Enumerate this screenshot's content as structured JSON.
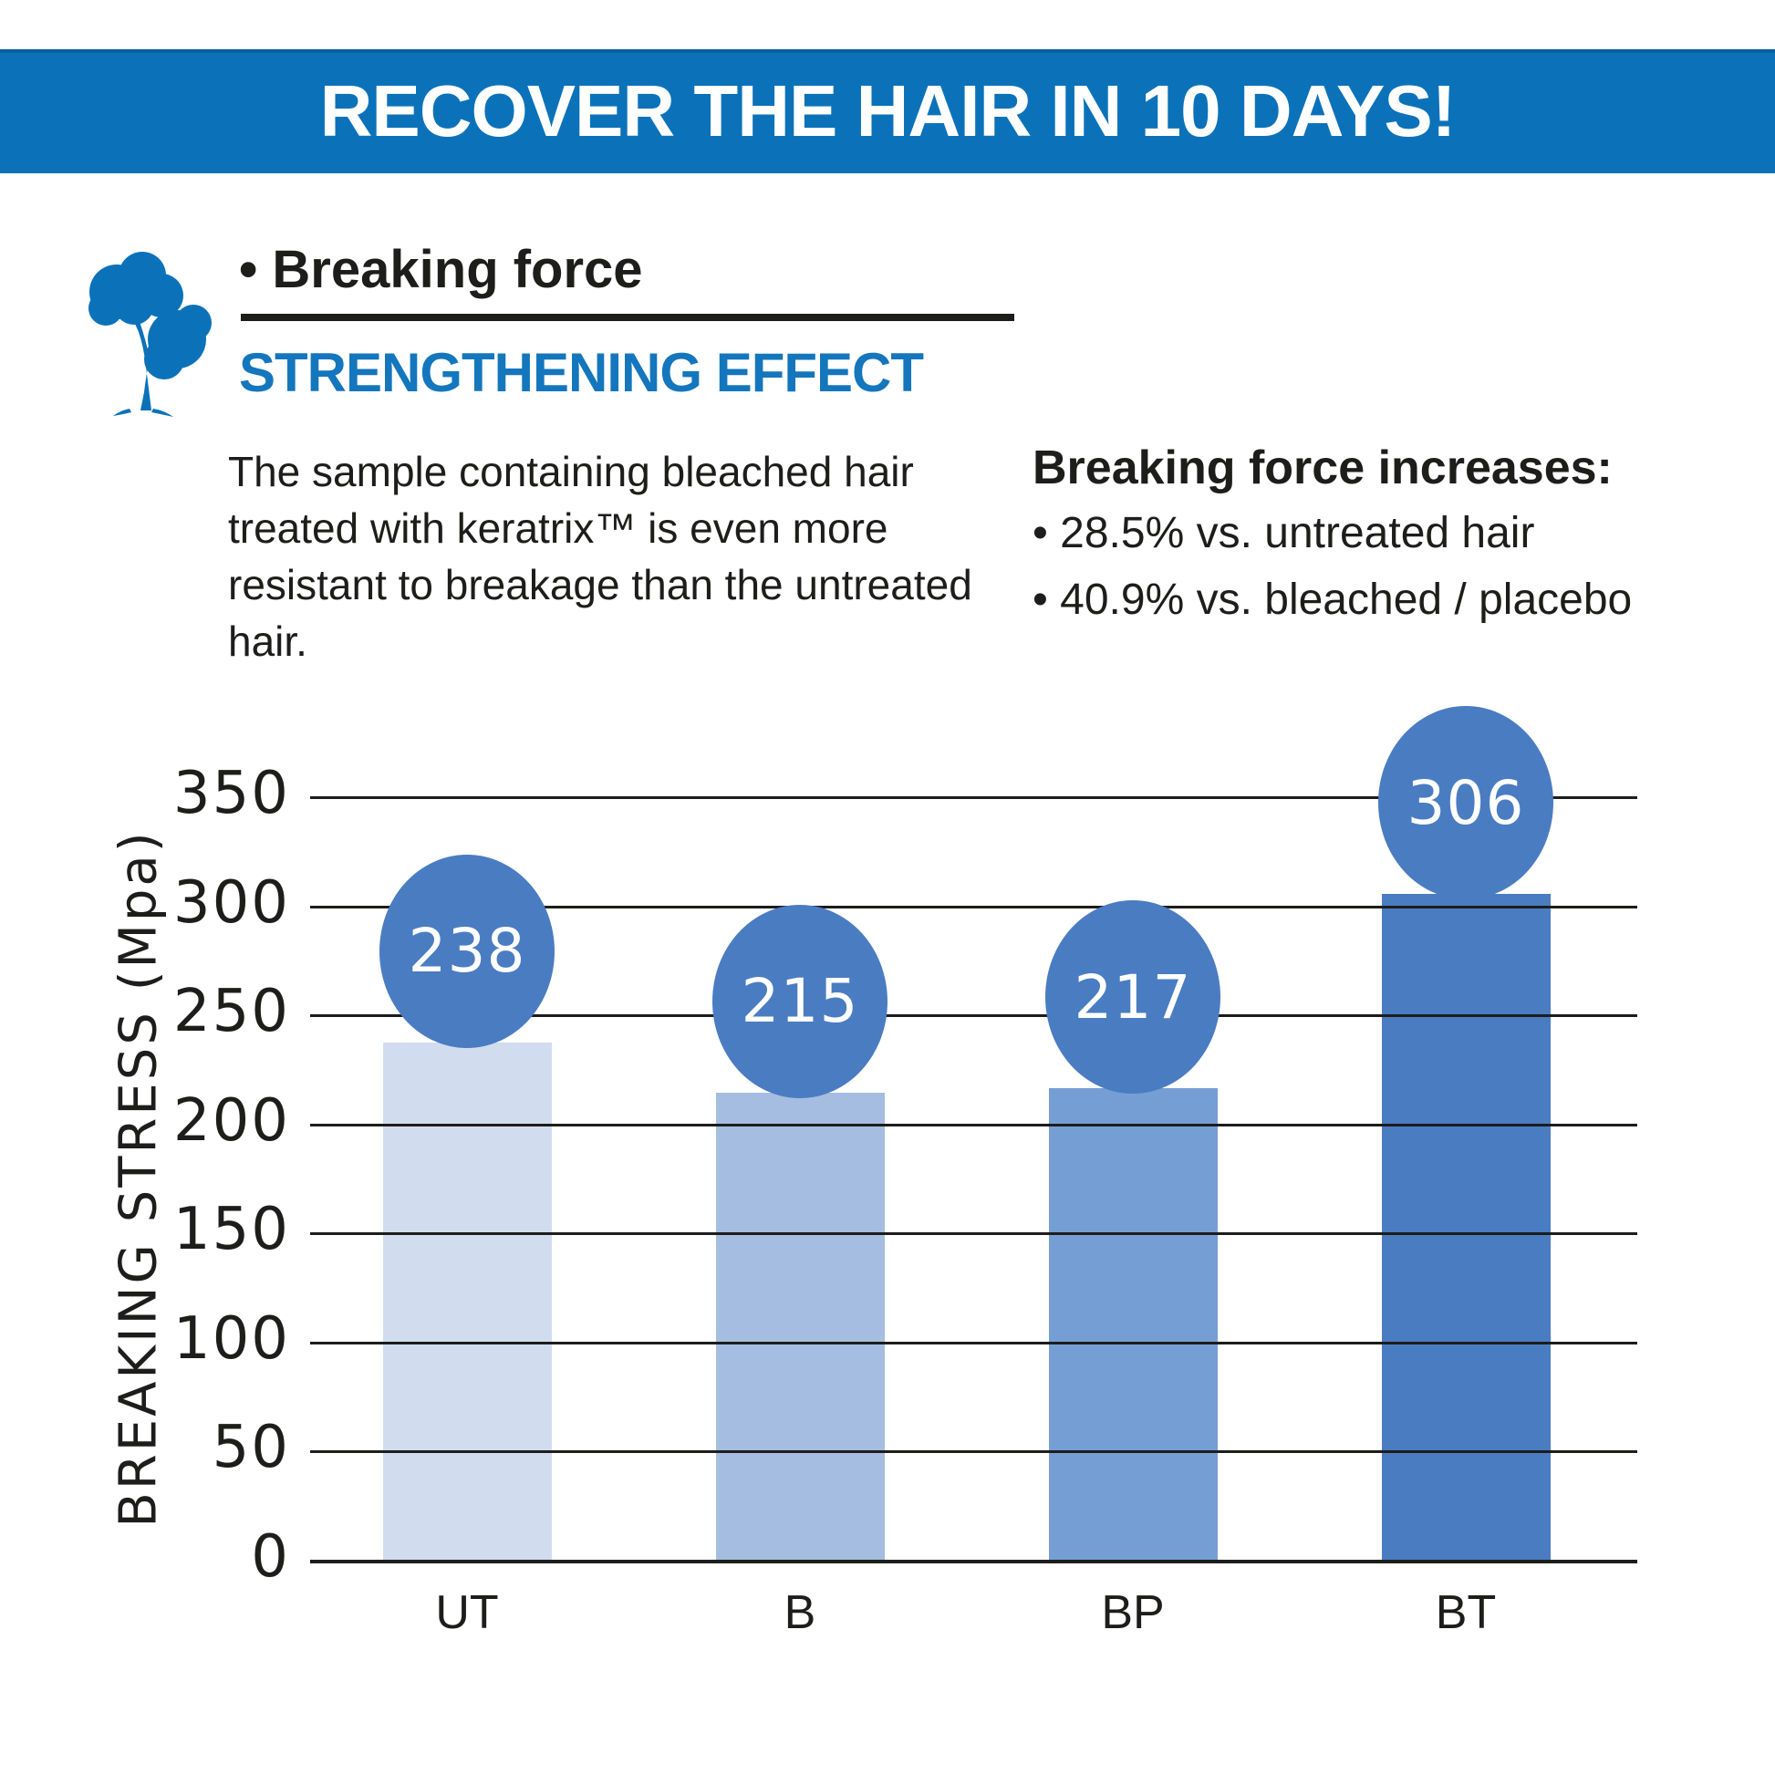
{
  "header": {
    "title": "RECOVER THE HAIR IN 10 DAYS!"
  },
  "section": {
    "bullet_title": "• Breaking force",
    "subtitle": "STRENGTHENING EFFECT",
    "paragraph": "The sample containing bleached hair treated with keratrix™ is even more resistant to breakage than the untreated hair.",
    "increases_heading": "Breaking force increases:",
    "increases_bullets": [
      "• 28.5% vs. untreated hair",
      "• 40.9% vs. bleached / placebo"
    ]
  },
  "icons": {
    "tree": "tree-icon"
  },
  "colors": {
    "header_blue": "#0b72ba",
    "subtitle_blue": "#1476bd",
    "text_dark": "#1d1d1b",
    "gridline": "#1d1d1b",
    "badge_text": "#ffffff"
  },
  "chart_data": {
    "type": "bar",
    "title": "",
    "categories": [
      "UT",
      "B",
      "BP",
      "BT"
    ],
    "values": [
      238,
      215,
      217,
      306
    ],
    "data_labels": [
      "238",
      "215",
      "217",
      "306"
    ],
    "xlabel": "",
    "ylabel": "BREAKING STRESS (Mpa)",
    "ylim": [
      0,
      350
    ],
    "ytick_step": 50,
    "grid": true,
    "legend": false,
    "bar_colors": [
      "#d1ddef",
      "#a5bde0",
      "#759fd4",
      "#4a7cc2"
    ],
    "badge_color": "#4a7cc2"
  }
}
